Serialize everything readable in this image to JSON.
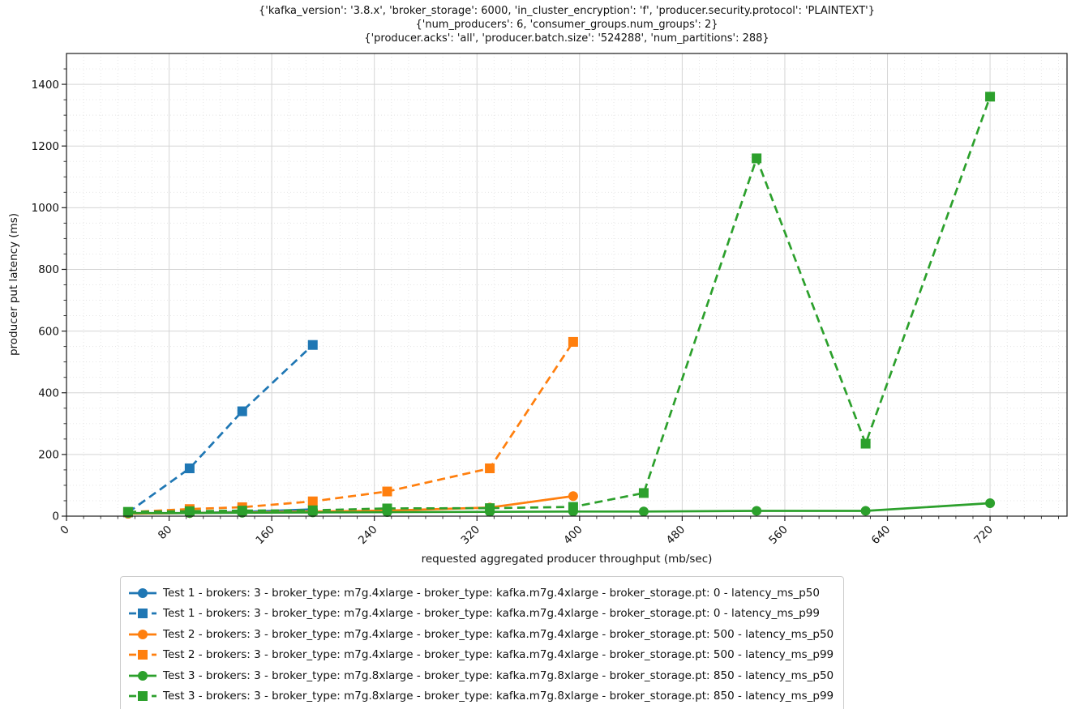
{
  "chart_data": {
    "type": "line",
    "title_lines": [
      "{'kafka_version': '3.8.x', 'broker_storage': 6000, 'in_cluster_encryption': 'f', 'producer.security.protocol': 'PLAINTEXT'}",
      "{'num_producers': 6, 'consumer_groups.num_groups': 2}",
      "{'producer.acks': 'all', 'producer.batch.size': '524288', 'num_partitions': 288}"
    ],
    "xlabel": "requested aggregated producer throughput (mb/sec)",
    "ylabel": "producer put latency (ms)",
    "xlim": [
      0,
      780
    ],
    "ylim": [
      0,
      1500
    ],
    "xticks": [
      0,
      80,
      160,
      240,
      320,
      400,
      480,
      560,
      640,
      720
    ],
    "yticks": [
      0,
      200,
      400,
      600,
      800,
      1000,
      1200,
      1400
    ],
    "grid": {
      "major": true,
      "minor_dotted": true
    },
    "legend_position": "below-axis-bottom-left",
    "series": [
      {
        "id": "test1-p50",
        "label": "Test 1 - brokers: 3 - broker_type: m7g.4xlarge - broker_type: kafka.m7g.4xlarge - broker_storage.pt: 0 - latency_ms_p50",
        "color": "#1f77b4",
        "linestyle": "solid",
        "marker": "circle",
        "x": [
          48,
          96,
          137,
          192
        ],
        "y": [
          8,
          10,
          14,
          22
        ]
      },
      {
        "id": "test1-p99",
        "label": "Test 1 - brokers: 3 - broker_type: m7g.4xlarge - broker_type: kafka.m7g.4xlarge - broker_storage.pt: 0 - latency_ms_p99",
        "color": "#1f77b4",
        "linestyle": "dashed",
        "marker": "square",
        "x": [
          48,
          96,
          137,
          192
        ],
        "y": [
          12,
          155,
          340,
          555
        ]
      },
      {
        "id": "test2-p50",
        "label": "Test 2 - brokers: 3 - broker_type: m7g.4xlarge - broker_type: kafka.m7g.4xlarge - broker_storage.pt: 500 - latency_ms_p50",
        "color": "#ff7f0e",
        "linestyle": "solid",
        "marker": "circle",
        "x": [
          48,
          96,
          137,
          192,
          250,
          330,
          395
        ],
        "y": [
          8,
          10,
          12,
          15,
          18,
          28,
          65
        ]
      },
      {
        "id": "test2-p99",
        "label": "Test 2 - brokers: 3 - broker_type: m7g.4xlarge - broker_type: kafka.m7g.4xlarge - broker_storage.pt: 500 - latency_ms_p99",
        "color": "#ff7f0e",
        "linestyle": "dashed",
        "marker": "square",
        "x": [
          48,
          96,
          137,
          192,
          250,
          330,
          395
        ],
        "y": [
          13,
          23,
          29,
          48,
          80,
          155,
          565
        ]
      },
      {
        "id": "test3-p50",
        "label": "Test 3 - brokers: 3 - broker_type: m7g.8xlarge - broker_type: kafka.m7g.8xlarge - broker_storage.pt: 850 - latency_ms_p50",
        "color": "#2ca02c",
        "linestyle": "solid",
        "marker": "circle",
        "x": [
          48,
          96,
          137,
          192,
          250,
          330,
          395,
          450,
          538,
          623,
          720
        ],
        "y": [
          10,
          10,
          11,
          12,
          13,
          14,
          15,
          15,
          17,
          17,
          42
        ]
      },
      {
        "id": "test3-p99",
        "label": "Test 3 - brokers: 3 - broker_type: m7g.8xlarge - broker_type: kafka.m7g.8xlarge - broker_storage.pt: 850 - latency_ms_p99",
        "color": "#2ca02c",
        "linestyle": "dashed",
        "marker": "square",
        "x": [
          48,
          96,
          137,
          192,
          250,
          330,
          395,
          450,
          538,
          623,
          720
        ],
        "y": [
          14,
          16,
          18,
          19,
          25,
          26,
          30,
          75,
          1160,
          235,
          1360
        ]
      }
    ]
  }
}
